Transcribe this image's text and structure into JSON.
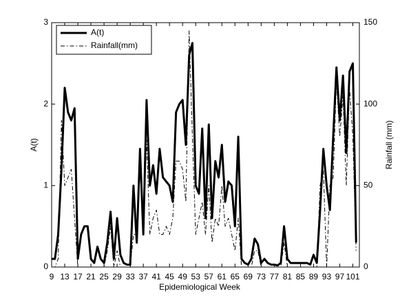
{
  "chart_data": {
    "type": "line",
    "xlabel": "Epidemiological Week",
    "ylabel": "A(t)",
    "y2label": "Rainfall (mm)",
    "x": [
      9,
      10,
      11,
      12,
      13,
      14,
      15,
      16,
      17,
      18,
      19,
      20,
      21,
      22,
      23,
      24,
      25,
      26,
      27,
      28,
      29,
      30,
      31,
      32,
      33,
      34,
      35,
      36,
      37,
      38,
      39,
      40,
      41,
      42,
      43,
      44,
      45,
      46,
      47,
      48,
      49,
      50,
      51,
      52,
      53,
      54,
      55,
      56,
      57,
      58,
      59,
      60,
      61,
      62,
      63,
      64,
      65,
      66,
      67,
      68,
      69,
      70,
      71,
      72,
      73,
      74,
      75,
      76,
      77,
      78,
      79,
      80,
      81,
      82,
      83,
      84,
      85,
      86,
      87,
      88,
      89,
      90,
      91,
      92,
      93,
      94,
      95,
      96,
      97,
      98,
      99,
      100,
      101,
      102
    ],
    "series": [
      {
        "name": "A(t)",
        "color": "#000000",
        "style": "solid",
        "width": 3,
        "values": [
          0.1,
          0.1,
          0.4,
          1.2,
          2.2,
          1.9,
          1.8,
          1.95,
          0.1,
          0.4,
          0.5,
          0.5,
          0.1,
          0.05,
          0.25,
          0.1,
          0.05,
          0.3,
          0.68,
          0.1,
          0.6,
          0.15,
          0.05,
          0.03,
          0.03,
          1.0,
          0.3,
          1.45,
          0.4,
          2.05,
          1.0,
          1.25,
          0.9,
          1.45,
          1.1,
          1.05,
          1.0,
          0.8,
          1.9,
          2.0,
          2.05,
          1.5,
          2.6,
          2.75,
          1.0,
          0.9,
          1.7,
          0.6,
          1.75,
          0.6,
          1.3,
          1.1,
          1.5,
          0.8,
          1.05,
          1.0,
          0.5,
          1.6,
          0.1,
          0.05,
          0.03,
          0.1,
          0.35,
          0.28,
          0.05,
          0.1,
          0.05,
          0.03,
          0.03,
          0.02,
          0.05,
          0.5,
          0.1,
          0.05,
          0.05,
          0.05,
          0.05,
          0.05,
          0.05,
          0.03,
          0.15,
          0.05,
          0.7,
          1.45,
          1.0,
          0.7,
          1.6,
          2.45,
          1.8,
          2.35,
          1.4,
          2.4,
          2.5,
          0.3
        ]
      },
      {
        "name": "Rainfall(mm)",
        "color": "#000000",
        "style": "dashdot",
        "width": 1,
        "axis": "y2",
        "values": [
          0,
          0,
          5,
          90,
          50,
          55,
          60,
          30,
          0,
          0,
          0,
          0,
          0,
          0,
          0,
          0,
          0,
          10,
          25,
          0,
          10,
          0,
          0,
          0,
          0,
          20,
          20,
          60,
          20,
          78,
          20,
          30,
          35,
          20,
          20,
          25,
          20,
          30,
          65,
          65,
          60,
          40,
          145,
          80,
          20,
          30,
          40,
          20,
          50,
          15,
          30,
          25,
          50,
          25,
          30,
          20,
          10,
          30,
          0,
          0,
          0,
          0,
          10,
          10,
          0,
          0,
          0,
          0,
          0,
          0,
          0,
          15,
          0,
          0,
          0,
          0,
          0,
          0,
          0,
          0,
          0,
          0,
          50,
          60,
          0,
          50,
          55,
          115,
          80,
          105,
          50,
          110,
          80,
          10
        ]
      }
    ],
    "xlim": [
      9,
      103
    ],
    "xticks": [
      9,
      13,
      17,
      21,
      25,
      29,
      33,
      37,
      41,
      45,
      49,
      53,
      57,
      61,
      65,
      69,
      73,
      77,
      81,
      85,
      89,
      93,
      97,
      101
    ],
    "ylim": [
      0,
      3
    ],
    "yticks": [
      0,
      1,
      2,
      3
    ],
    "y2lim": [
      0,
      150
    ],
    "y2ticks": [
      0,
      50,
      100,
      150
    ],
    "legend": "upper left"
  }
}
